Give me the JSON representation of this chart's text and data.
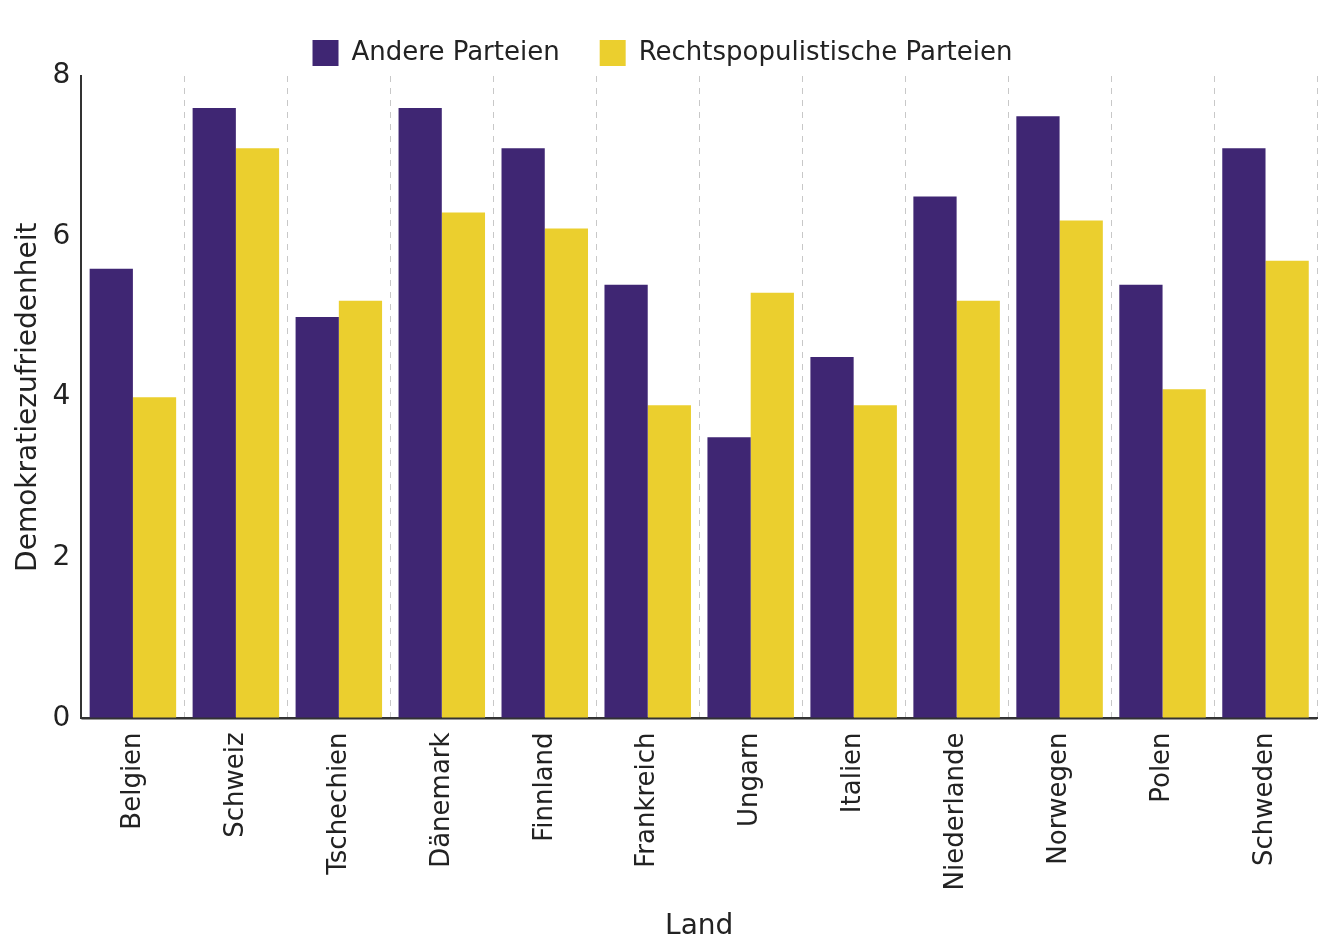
{
  "chart_data": {
    "type": "bar",
    "xlabel": "Land",
    "ylabel": "Demokratiezufriedenheit",
    "categories": [
      "Belgien",
      "Schweiz",
      "Tschechien",
      "Dänemark",
      "Finnland",
      "Frankreich",
      "Ungarn",
      "Italien",
      "Niederlande",
      "Norwegen",
      "Polen",
      "Schweden"
    ],
    "series": [
      {
        "name": "Andere Parteien",
        "color": "#3f2673",
        "values": [
          5.6,
          7.6,
          5.0,
          7.6,
          7.1,
          5.4,
          3.5,
          4.5,
          6.5,
          7.5,
          5.4,
          7.1
        ]
      },
      {
        "name": "Rechtspopulistische Parteien",
        "color": "#ebcf2e",
        "values": [
          4.0,
          7.1,
          5.2,
          6.3,
          6.1,
          3.9,
          5.3,
          3.9,
          5.2,
          6.2,
          4.1,
          5.7
        ]
      }
    ],
    "ylim": [
      0,
      8
    ],
    "yticks": [
      0,
      2,
      4,
      6,
      8
    ],
    "grid": "x",
    "legend": "top"
  }
}
